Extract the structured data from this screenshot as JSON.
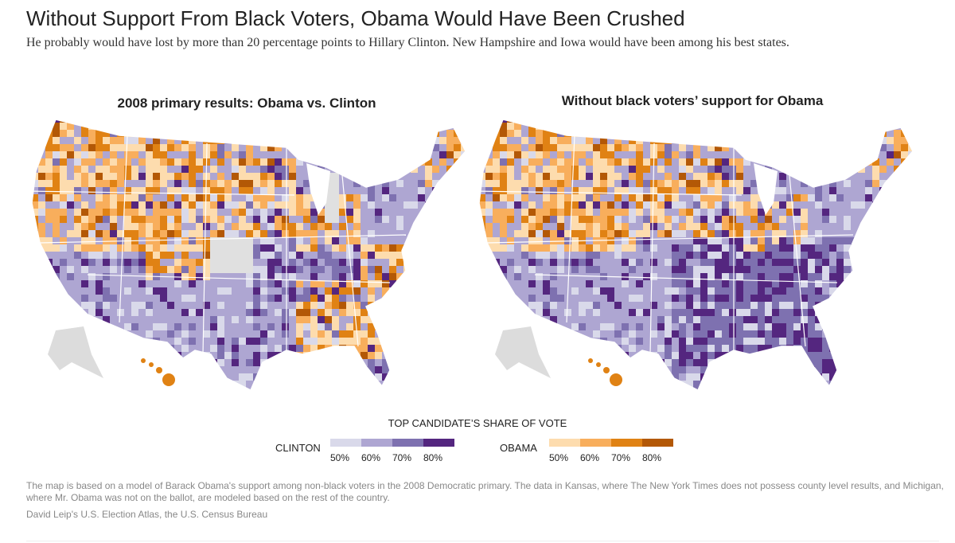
{
  "header": {
    "title": "Without Support From Black Voters, Obama Would Have Been Crushed",
    "subtitle": "He probably would have lost by more than 20 percentage points to Hillary Clinton. New Hampshire and Iowa would have been among his best states."
  },
  "maps": [
    {
      "title": "2008 primary results: Obama vs. Clinton",
      "scenario": "actual"
    },
    {
      "title": "Without black voters’ support for Obama",
      "scenario": "counterfactual"
    }
  ],
  "legend": {
    "title": "TOP CANDIDATE’S SHARE OF VOTE",
    "clinton": {
      "label": "CLINTON",
      "colors": [
        "#d9d9ea",
        "#aea6d2",
        "#7e71b0",
        "#54267f"
      ],
      "ticks": [
        "50%",
        "60%",
        "70%",
        "80%"
      ]
    },
    "obama": {
      "label": "OBAMA",
      "colors": [
        "#fddcae",
        "#f8ae5c",
        "#e08214",
        "#b35806"
      ],
      "ticks": [
        "50%",
        "60%",
        "70%",
        "80%"
      ]
    }
  },
  "footnote": "The map is based on a model of Barack Obama's support among non-black voters in the 2008 Democratic primary. The data in Kansas, where The New York Times does not possess county level results, and Michigan, where Mr. Obama was not on the ballot, are modeled based on the rest of the country.",
  "source": "David Leip's U.S. Election Atlas, the U.S. Census Bureau"
}
